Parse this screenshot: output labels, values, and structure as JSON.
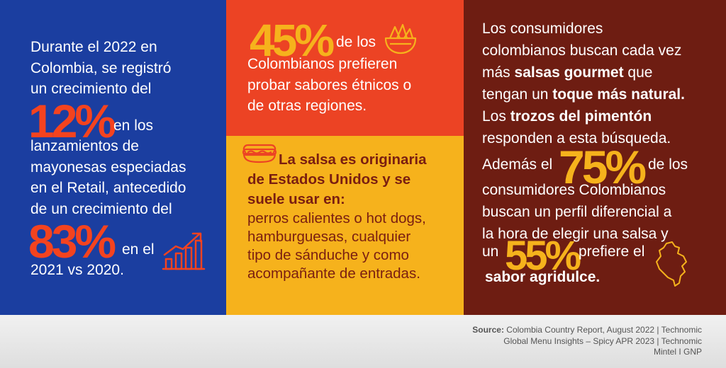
{
  "blue": {
    "l1": "Durante el 2022 en",
    "l2": "Colombia, se registró",
    "l3": "un crecimiento del",
    "pct1": "12%",
    "l4": "en los",
    "l5": "lanzamientos de",
    "l6": "mayonesas especiadas",
    "l7": "en el Retail, antecedido",
    "l8": "de un crecimiento del",
    "pct2": "83%",
    "l9": "en el",
    "l10": "2021 vs 2020."
  },
  "red": {
    "pct": "45%",
    "l1": "de los",
    "l2": "Colombianos prefieren",
    "l3": "probar sabores étnicos o",
    "l4": "de otras regiones."
  },
  "yellow": {
    "h1": "La salsa es originaria",
    "h2": "de Estados Unidos y se",
    "h3": "suele usar en:",
    "b1": "perros calientes o hot dogs,",
    "b2": "hamburguesas, cualquier",
    "b3": "tipo de sánduche y como",
    "b4": "acompañante de entradas."
  },
  "maroon": {
    "l1": "Los consumidores",
    "l2": "colombianos buscan cada vez",
    "l3a": "más ",
    "l3b": "salsas gourmet",
    "l3c": " que",
    "l4a": "tengan un ",
    "l4b": "toque más natural.",
    "l5a": "Los ",
    "l5b": "trozos del pimentón",
    "l6": "responden a esta búsqueda.",
    "l7a": "Además el",
    "pct1": "75%",
    "l7b": "de los",
    "l8": "consumidores Colombianos",
    "l9": "buscan un perfil diferencial a",
    "l10": "la hora de elegir una salsa y",
    "l11a": "un",
    "pct2": "55%",
    "l11b": "prefiere el",
    "l12": "sabor agridulce."
  },
  "footer": {
    "source_label": "Source:",
    "source_l1": " Colombia Country Report, August 2022 | Technomic",
    "source_l2": "Global Menu Insights – Spicy APR 2023 | Technomic",
    "source_l3": "Mintel I GNP"
  },
  "icons": {
    "growth": "growth-chart-icon",
    "nachos": "nachos-bowl-icon",
    "hotdog": "hotdog-icon",
    "map": "colombia-map-icon"
  },
  "colors": {
    "blue": "#1b3ea0",
    "red": "#ec4324",
    "yellow": "#f6b21c",
    "maroon": "#6e1d12",
    "accent_red": "#f4431f"
  }
}
